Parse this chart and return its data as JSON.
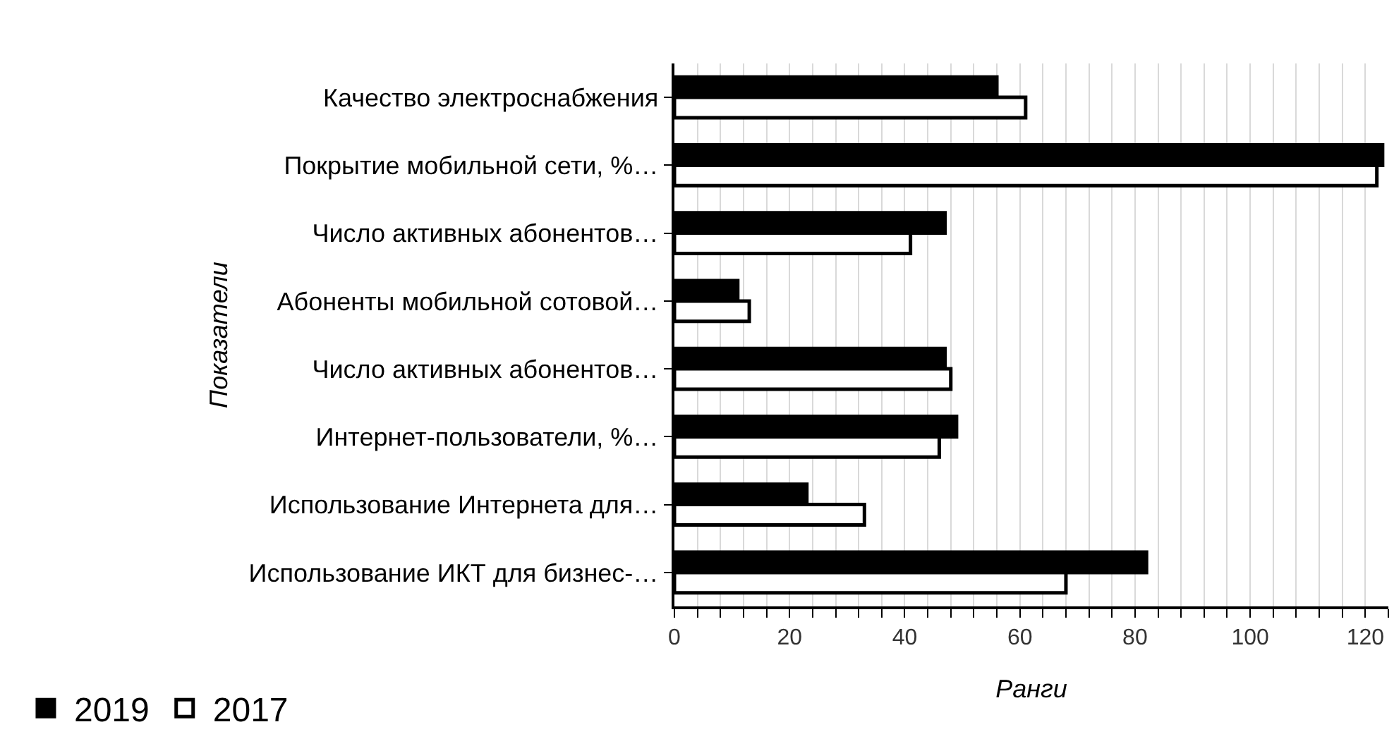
{
  "chart_data": {
    "type": "bar",
    "orientation": "horizontal",
    "xlabel": "Ранги",
    "ylabel": "Показатели",
    "categories": [
      "Качество электроснабжения",
      "Покрытие мобильной сети, %…",
      "Число активных абонентов…",
      "Абоненты мобильной сотовой…",
      "Число активных абонентов…",
      "Интернет-пользователи, %…",
      "Использование Интернета для…",
      "Использование ИКТ для бизнес-…"
    ],
    "series": [
      {
        "name": "2019",
        "color": "#000000",
        "values": [
          56,
          123,
          47,
          11,
          47,
          49,
          23,
          82
        ]
      },
      {
        "name": "2017",
        "color": "#ffffff",
        "values": [
          61,
          122,
          41,
          13,
          48,
          46,
          33,
          68
        ]
      }
    ],
    "xlim": [
      0,
      124
    ],
    "xticks": [
      0,
      {
        "value": 4,
        "label": null
      },
      {
        "value": 8,
        "label": null
      },
      {
        "value": 12,
        "label": null
      },
      {
        "value": 16,
        "label": null
      },
      20,
      {
        "value": 24,
        "label": null
      },
      {
        "value": 28,
        "label": null
      },
      {
        "value": 32,
        "label": null
      },
      {
        "value": 36,
        "label": null
      },
      40,
      {
        "value": 44,
        "label": null
      },
      {
        "value": 48,
        "label": null
      },
      {
        "value": 52,
        "label": null
      },
      {
        "value": 56,
        "label": null
      },
      60,
      {
        "value": 64,
        "label": null
      },
      {
        "value": 68,
        "label": null
      },
      {
        "value": 72,
        "label": null
      },
      {
        "value": 76,
        "label": null
      },
      80,
      {
        "value": 84,
        "label": null
      },
      {
        "value": 88,
        "label": null
      },
      {
        "value": 92,
        "label": null
      },
      {
        "value": 96,
        "label": null
      },
      100,
      {
        "value": 104,
        "label": null
      },
      {
        "value": 108,
        "label": null
      },
      {
        "value": 112,
        "label": null
      },
      {
        "value": 116,
        "label": null
      },
      120,
      {
        "value": 124,
        "label": null
      }
    ],
    "grid": "x",
    "legend": "bottom left"
  }
}
